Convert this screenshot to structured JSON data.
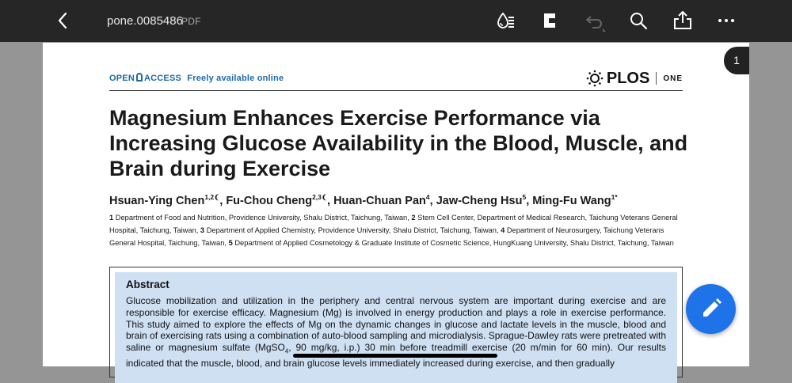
{
  "topbar": {
    "filename": "pone.0085486",
    "filetype": "PDF",
    "icons": [
      "back-icon",
      "reader-mode-icon",
      "page-layout-icon",
      "undo-icon",
      "search-icon",
      "share-icon",
      "more-icon"
    ]
  },
  "page_indicator": "1",
  "doc": {
    "open_access": {
      "open": "OPEN",
      "access": "ACCESS",
      "freely": "Freely available online"
    },
    "logo": {
      "name": "PLOS",
      "journal": "ONE"
    },
    "title": "Magnesium Enhances Exercise Performance via Increasing Glucose Availability in the Blood, Muscle, and Brain during Exercise",
    "authors": [
      {
        "name": "Hsuan-Ying Chen",
        "sup": "1,2❨"
      },
      {
        "name": "Fu-Chou Cheng",
        "sup": "2,3❨"
      },
      {
        "name": "Huan-Chuan Pan",
        "sup": "4"
      },
      {
        "name": "Jaw-Cheng Hsu",
        "sup": "5"
      },
      {
        "name": "Ming-Fu Wang",
        "sup": "1*"
      }
    ],
    "affiliations": [
      {
        "num": "1",
        "text": "Department of Food and Nutrition, Providence University, Shalu District, Taichung, Taiwan,"
      },
      {
        "num": "2",
        "text": "Stem Cell Center, Department of Medical Research, Taichung Veterans General Hospital, Taichung, Taiwan,"
      },
      {
        "num": "3",
        "text": "Department of Applied Chemistry, Providence University, Shalu District, Taichung, Taiwan,"
      },
      {
        "num": "4",
        "text": "Department of Neurosurgery, Taichung Veterans General Hospital, Taichung, Taiwan,"
      },
      {
        "num": "5",
        "text": "Department of Applied Cosmetology & Graduate Institute of Cosmetic Science, HungKuang University, Shalu District, Taichung, Taiwan"
      }
    ],
    "abstract": {
      "heading": "Abstract",
      "text_a": "Glucose mobilization and utilization in the periphery and central nervous system are important during exercise and are responsible for exercise efficacy. Magnesium (Mg) is involved in energy production and plays a role in exercise performance. This study aimed to explore the effects of Mg on the dynamic changes in glucose and lactate levels in the muscle, blood and brain of exercising rats using a combination of auto-blood sampling and microdialysis. Sprague-Dawley rats were pretreated with saline or magnesium sulfate (MgSO",
      "sub": "4",
      "text_b": ", 90 mg/kg, i.p.) 30 min before treadmill exercise (20 m/min for 60 min). Our results indicated that the muscle, blood, and brain glucose levels immediately increased during exercise, and then gradually"
    }
  },
  "colors": {
    "topbar": "#262626",
    "accent": "#1e73e8",
    "abstract_bg": "#cfe0f3",
    "oa_blue": "#1d6aa8"
  }
}
